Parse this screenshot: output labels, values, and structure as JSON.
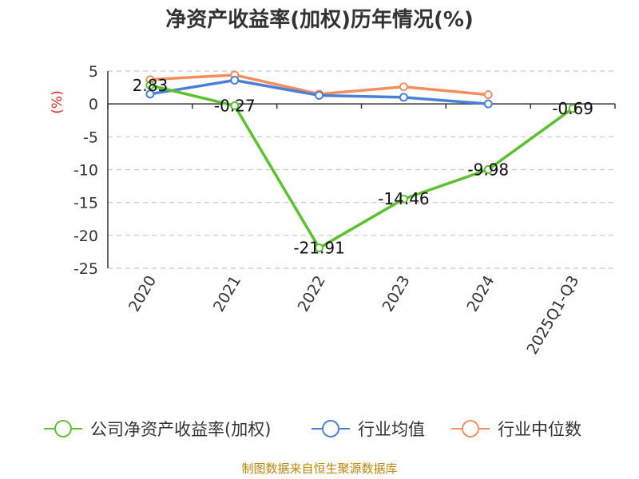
{
  "chart_data": {
    "type": "line",
    "title": "净资产收益率(加权)历年情况(%)",
    "ylabel": "(%)",
    "categories": [
      "2020",
      "2021",
      "2022",
      "2023",
      "2024",
      "2025Q1-Q3"
    ],
    "ylim": [
      -25,
      5
    ],
    "yticks": [
      5,
      0,
      -5,
      -10,
      -15,
      -20,
      -25
    ],
    "grid": true,
    "legend_position": "bottom",
    "series": [
      {
        "name": "公司净资产收益率(加权)",
        "color": "#5cc12f",
        "values": [
          2.83,
          -0.27,
          -21.91,
          -14.46,
          -9.98,
          -0.69
        ],
        "labels": [
          "2.83",
          "-0.27",
          "-21.91",
          "-14.46",
          "-9.98",
          "-0.69"
        ]
      },
      {
        "name": "行业均值",
        "color": "#4a7fd6",
        "values": [
          1.5,
          3.6,
          1.3,
          1.0,
          0.0,
          null
        ]
      },
      {
        "name": "行业中位数",
        "color": "#f58d5f",
        "values": [
          3.7,
          4.4,
          1.5,
          2.6,
          1.4,
          null
        ]
      }
    ]
  },
  "source_text": "制图数据来自恒生聚源数据库"
}
